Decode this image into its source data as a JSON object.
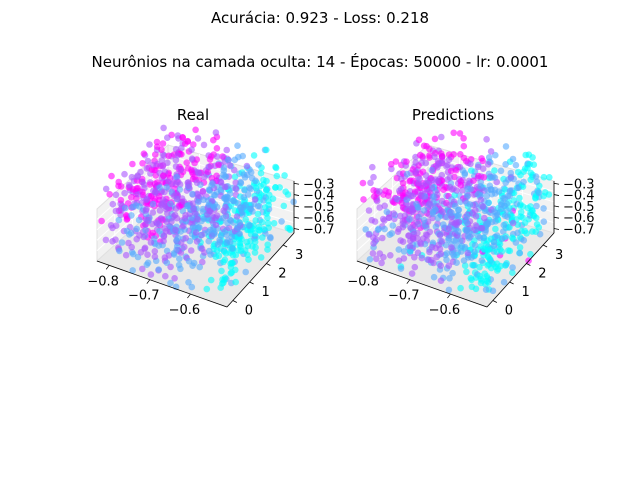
{
  "figure": {
    "line1": "Acurácia: 0.923 - Loss: 0.218",
    "line2": "Neurônios na camada oculta: 14 - Épocas: 50000 - lr: 0.0001"
  },
  "chart_data": [
    {
      "type": "scatter",
      "title": "Real",
      "projection": "3d",
      "colormap": "cool",
      "x_ticks": [
        "−0.8",
        "−0.7",
        "−0.6"
      ],
      "y_ticks": [
        "0",
        "1",
        "2",
        "3"
      ],
      "z_ticks": [
        "−0.3",
        "−0.4",
        "−0.5",
        "−0.6",
        "−0.7"
      ],
      "xlim": [
        -0.85,
        -0.55
      ],
      "ylim": [
        -0.2,
        3.4
      ],
      "zlim": [
        -0.72,
        -0.28
      ],
      "point_count": 900,
      "class_colors": [
        "#ff00ff",
        "#aa55ff",
        "#55aaff",
        "#00ffff"
      ]
    },
    {
      "type": "scatter",
      "title": "Predictions",
      "projection": "3d",
      "colormap": "cool",
      "x_ticks": [
        "−0.8",
        "−0.7",
        "−0.6"
      ],
      "y_ticks": [
        "0",
        "1",
        "2",
        "3"
      ],
      "z_ticks": [
        "−0.3",
        "−0.4",
        "−0.5",
        "−0.6",
        "−0.7"
      ],
      "xlim": [
        -0.85,
        -0.55
      ],
      "ylim": [
        -0.2,
        3.4
      ],
      "zlim": [
        -0.72,
        -0.28
      ],
      "point_count": 900,
      "class_colors": [
        "#ff00ff",
        "#aa55ff",
        "#55aaff",
        "#00ffff"
      ]
    }
  ]
}
